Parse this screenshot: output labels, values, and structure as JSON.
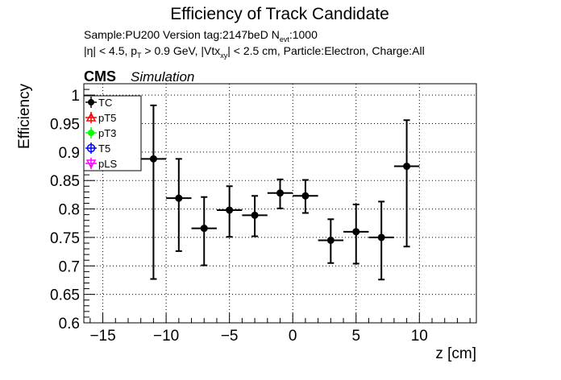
{
  "chart_data": {
    "type": "scatter",
    "title": "Efficiency of Track Candidate",
    "subtitle_line1": {
      "text": "Sample:PU200   Version tag:2147beD  N",
      "sub": "evt",
      "tail": ":1000"
    },
    "subtitle_line2": {
      "part1": "|η| < 4.5, p",
      "sub1": "T",
      "part2": " > 0.9 GeV, |Vtx",
      "sub2": "xy",
      "part3": "| < 2.5 cm, Particle:Electron, Charge:All"
    },
    "cms_label": "CMS",
    "sim_label": "Simulation",
    "xlabel": "z [cm]",
    "ylabel": "Efficiency",
    "xlim": [
      -16.5,
      14.5
    ],
    "ylim": [
      0.6,
      1.02
    ],
    "x_ticks": [
      -15,
      -10,
      -5,
      0,
      5,
      10
    ],
    "x_tick_labels": [
      "−15",
      "−10",
      "−5",
      "0",
      "5",
      "10"
    ],
    "y_ticks": [
      0.6,
      0.65,
      0.7,
      0.75,
      0.8,
      0.85,
      0.9,
      0.95,
      1.0
    ],
    "y_tick_labels": [
      "0.6",
      "0.65",
      "0.7",
      "0.75",
      "0.8",
      "0.85",
      "0.9",
      "0.95",
      "1"
    ],
    "grid": true,
    "legend_position": "top-left",
    "legend": [
      {
        "label": "TC",
        "color": "#000000",
        "marker": "filled-circle"
      },
      {
        "label": "pT5",
        "color": "#ff0000",
        "marker": "open-triangle"
      },
      {
        "label": "pT3",
        "color": "#00ff00",
        "marker": "filled-circle"
      },
      {
        "label": "T5",
        "color": "#0000ff",
        "marker": "open-circle"
      },
      {
        "label": "pLS",
        "color": "#ff00ff",
        "marker": "open-triangle-down"
      }
    ],
    "series": [
      {
        "name": "TC",
        "color": "#000000",
        "points": [
          {
            "x": -11,
            "xerr": 1,
            "y": 0.888,
            "ylo": 0.677,
            "yhi": 0.982
          },
          {
            "x": -9,
            "xerr": 1,
            "y": 0.819,
            "ylo": 0.726,
            "yhi": 0.888
          },
          {
            "x": -7,
            "xerr": 1,
            "y": 0.766,
            "ylo": 0.701,
            "yhi": 0.821
          },
          {
            "x": -5,
            "xerr": 1,
            "y": 0.798,
            "ylo": 0.751,
            "yhi": 0.84
          },
          {
            "x": -3,
            "xerr": 1,
            "y": 0.789,
            "ylo": 0.752,
            "yhi": 0.823
          },
          {
            "x": -1,
            "xerr": 1,
            "y": 0.828,
            "ylo": 0.801,
            "yhi": 0.852
          },
          {
            "x": 1,
            "xerr": 1,
            "y": 0.823,
            "ylo": 0.793,
            "yhi": 0.851
          },
          {
            "x": 3,
            "xerr": 1,
            "y": 0.745,
            "ylo": 0.705,
            "yhi": 0.782
          },
          {
            "x": 5,
            "xerr": 1,
            "y": 0.76,
            "ylo": 0.704,
            "yhi": 0.808
          },
          {
            "x": 7,
            "xerr": 1,
            "y": 0.75,
            "ylo": 0.676,
            "yhi": 0.813
          },
          {
            "x": 9,
            "xerr": 1,
            "y": 0.875,
            "ylo": 0.734,
            "yhi": 0.956
          }
        ]
      }
    ]
  }
}
